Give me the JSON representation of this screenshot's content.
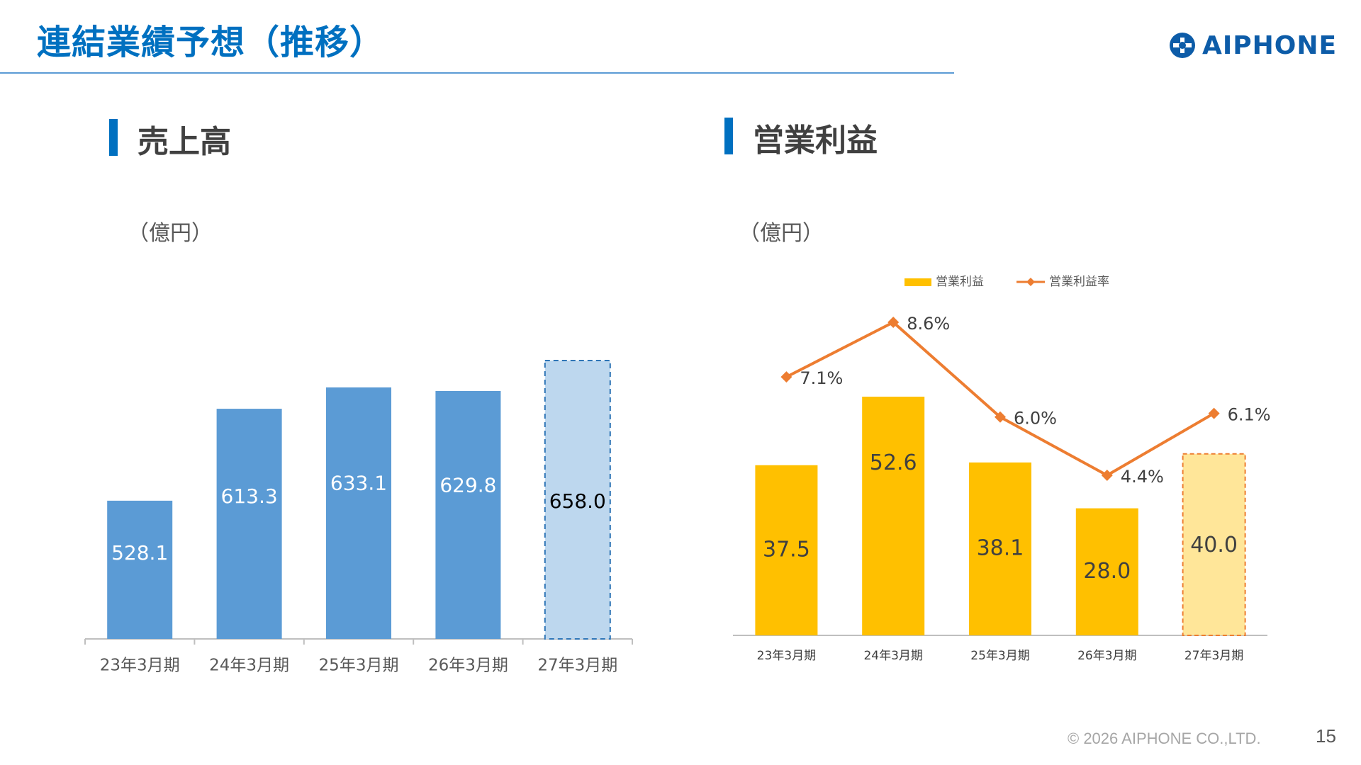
{
  "header": {
    "title": "連結業績予想（推移）",
    "logo_text": "AIPHONE"
  },
  "sales": {
    "heading": "売上高",
    "unit": "（億円）"
  },
  "profit": {
    "heading": "営業利益",
    "unit": "（億円）"
  },
  "footer": {
    "copyright": "© 2026 AIPHONE CO.,LTD.",
    "page": "15"
  },
  "colors": {
    "accent": "#0070c0",
    "sales_bar": "#5b9bd5",
    "sales_forecast": "#bdd7ee",
    "profit_bar": "#ffc000",
    "profit_forecast": "#ffe699",
    "margin_line": "#ed7d31"
  },
  "chart_data": [
    {
      "type": "bar",
      "title": "売上高",
      "ylabel": "（億円）",
      "categories": [
        "23年3月期",
        "24年3月期",
        "25年3月期",
        "26年3月期",
        "27年3月期"
      ],
      "values": [
        528.1,
        613.3,
        633.1,
        629.8,
        658.0
      ],
      "labels": [
        "528.1",
        "613.3",
        "633.1",
        "629.8",
        "658.0"
      ],
      "forecast_index": 4,
      "ylim": [
        400,
        700
      ],
      "grid": false,
      "legend": "none"
    },
    {
      "type": "bar",
      "title": "営業利益",
      "ylabel": "（億円）",
      "categories": [
        "23年3月期",
        "24年3月期",
        "25年3月期",
        "26年3月期",
        "27年3月期"
      ],
      "series": [
        {
          "name": "営業利益",
          "type": "bar",
          "values": [
            37.5,
            52.6,
            38.1,
            28.0,
            40.0
          ],
          "labels": [
            "37.5",
            "52.6",
            "38.1",
            "28.0",
            "40.0"
          ]
        },
        {
          "name": "営業利益率",
          "type": "line",
          "values": [
            7.1,
            8.6,
            6.0,
            4.4,
            6.1
          ],
          "labels": [
            "7.1%",
            "8.6%",
            "6.0%",
            "4.4%",
            "6.1%"
          ],
          "unit": "%"
        }
      ],
      "forecast_index": 4,
      "ylim": [
        0,
        62
      ],
      "y2lim": [
        0,
        10
      ],
      "grid": false,
      "legend": "top"
    }
  ]
}
